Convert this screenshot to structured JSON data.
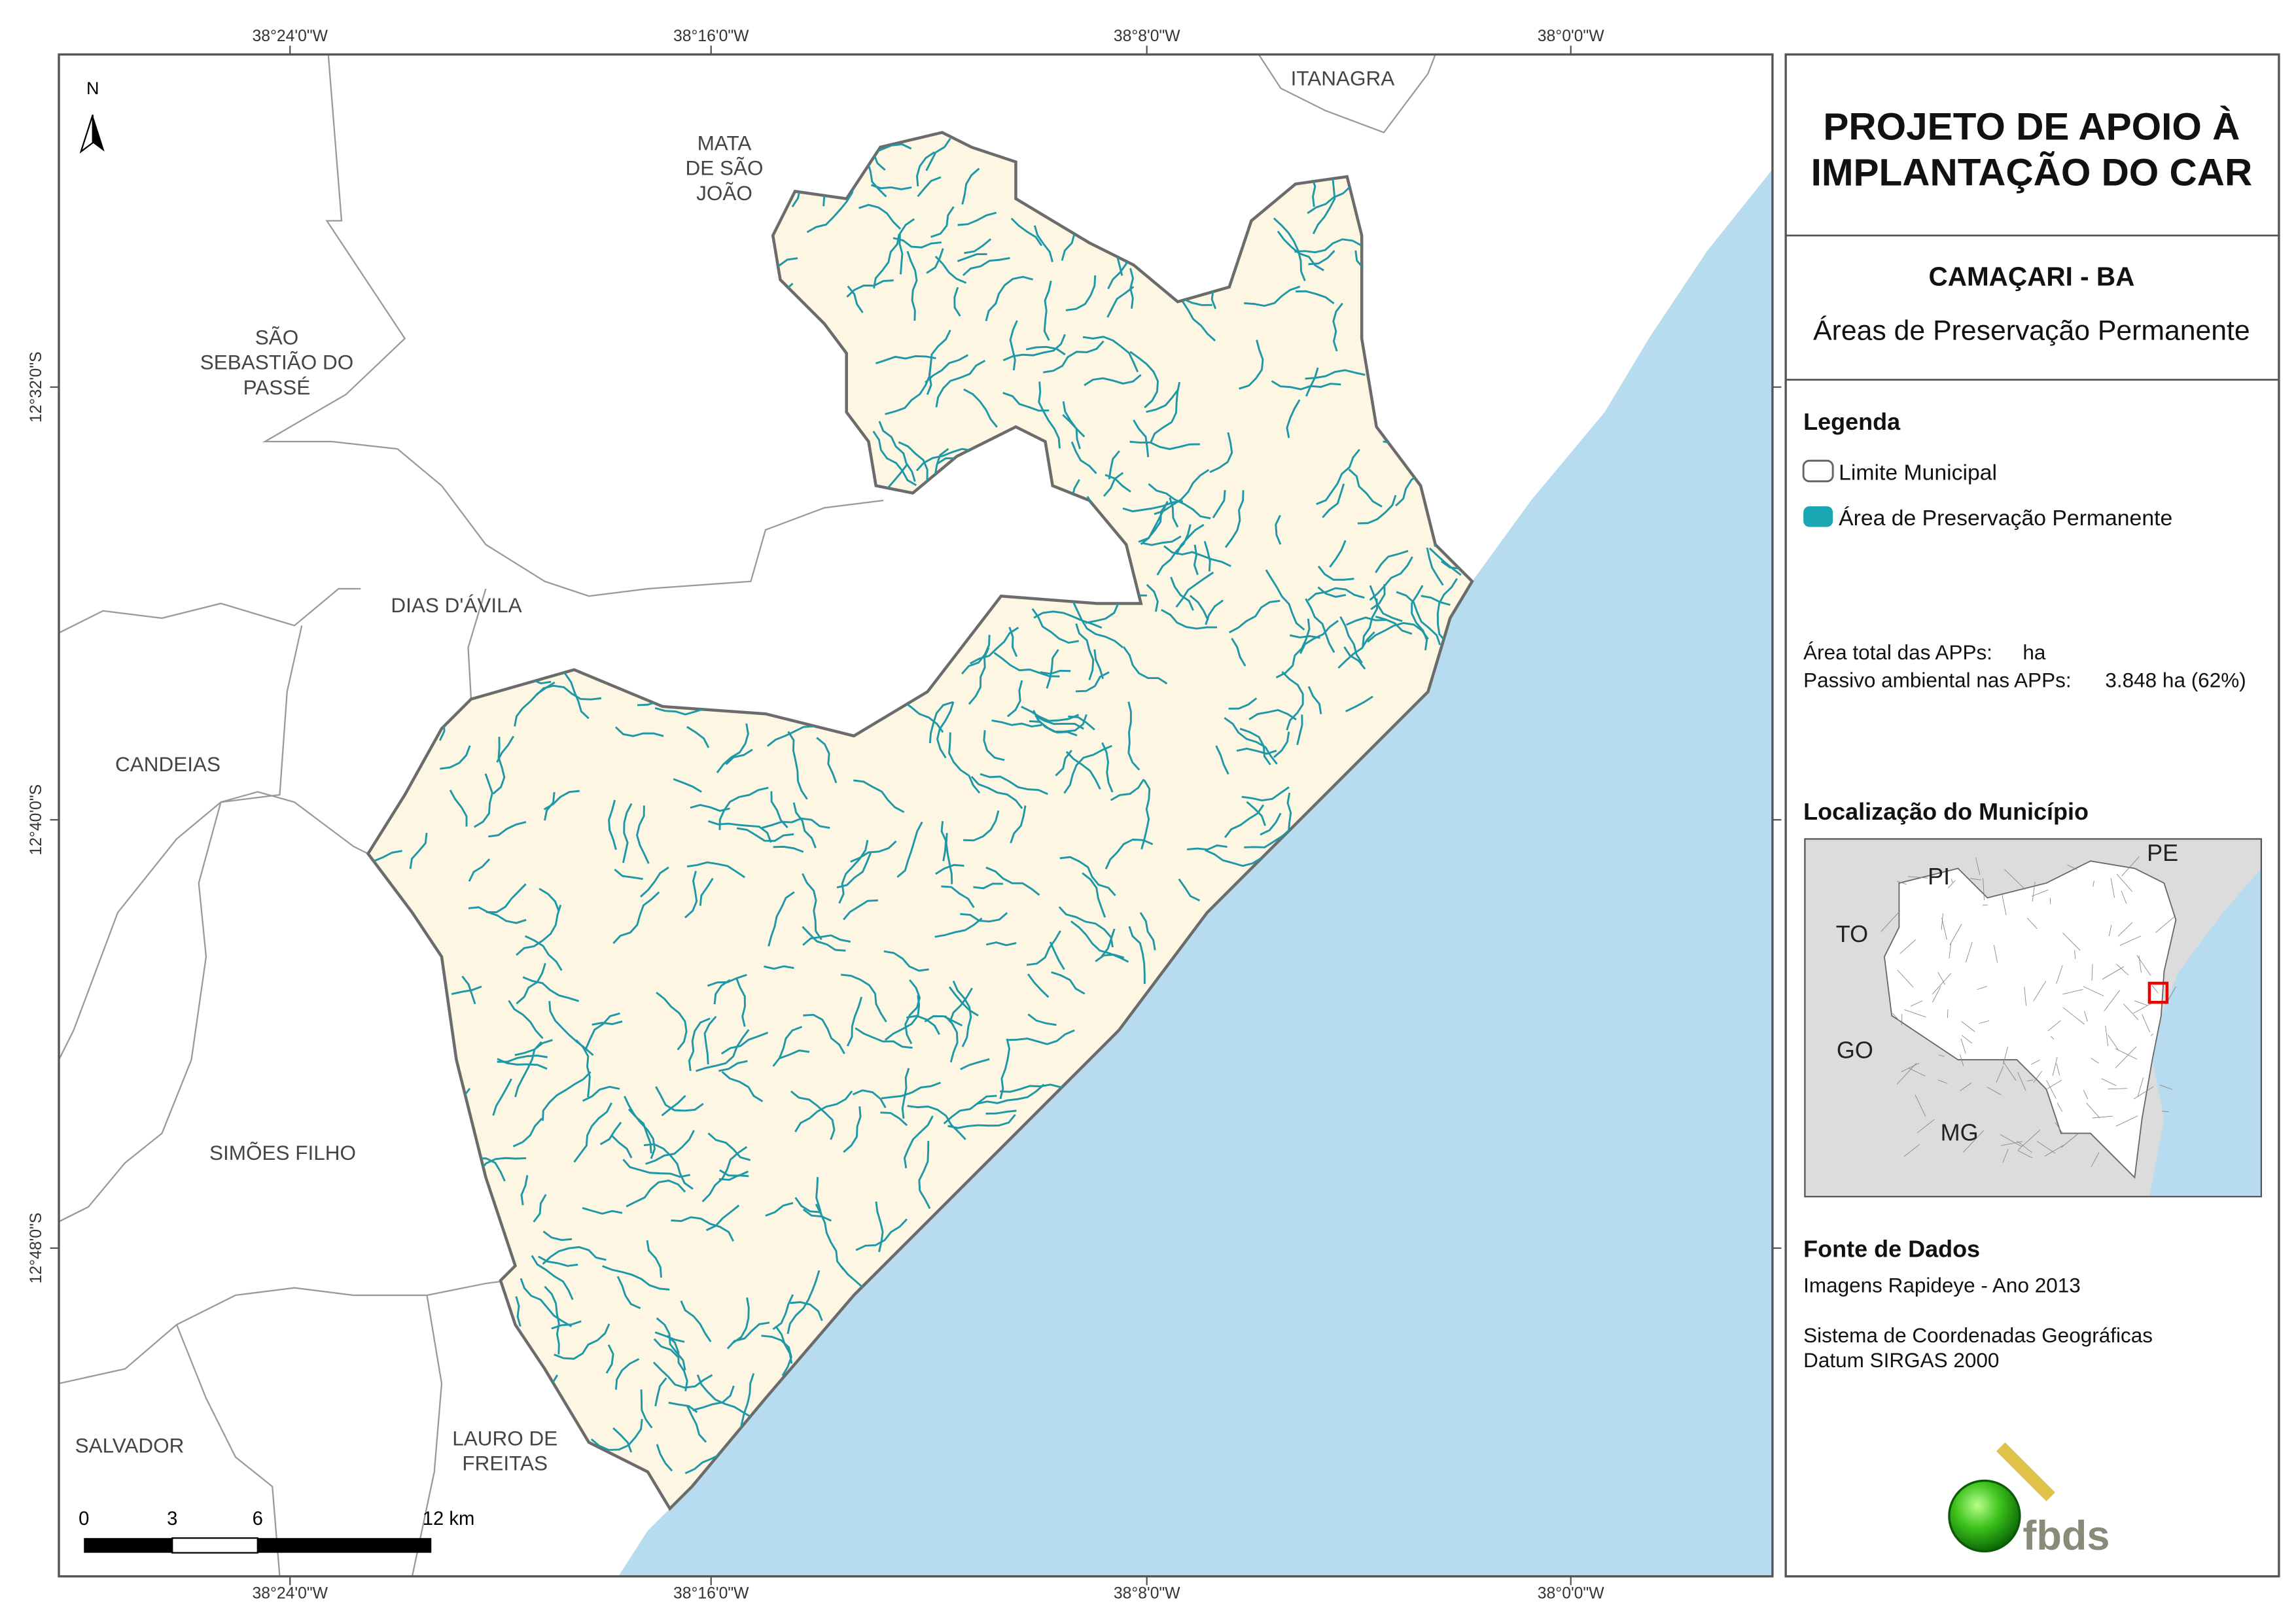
{
  "grid_labels": {
    "top": [
      "38°24'0\"W",
      "38°16'0\"W",
      "38°8'0\"W",
      "38°0'0\"W"
    ],
    "bottom": [
      "38°24'0\"W",
      "38°16'0\"W",
      "38°8'0\"W",
      "38°0'0\"W"
    ],
    "left": [
      "12°32'0\"S",
      "12°40'0\"S",
      "12°48'0\"S"
    ]
  },
  "north_arrow": "N",
  "places": [
    [
      "ITANAGRA"
    ],
    [
      "MATA",
      "DE SÃO",
      "JOÃO"
    ],
    [
      "SÃO",
      "SEBASTIÃO DO",
      "PASSÉ"
    ],
    [
      "DIAS D'ÁVILA"
    ],
    [
      "CANDEIAS"
    ],
    [
      "SIMÕES FILHO"
    ],
    [
      "SALVADOR"
    ],
    [
      "LAURO DE",
      "FREITAS"
    ]
  ],
  "scale_bar": [
    "0",
    "3",
    "6",
    "12 km"
  ],
  "panel": {
    "title": [
      "PROJETO DE APOIO À",
      "IMPLANTAÇÃO DO CAR"
    ],
    "municipality": "CAMAÇARI - BA",
    "theme": "Áreas de Preservação Permanente",
    "legend": {
      "title": "Legenda",
      "items": [
        "Limite Municipal",
        "Área de Preservação Permanente"
      ]
    },
    "stats": [
      {
        "label": "Área total das APPs:",
        "value": "ha"
      },
      {
        "label": "Passivo ambiental nas APPs:",
        "value": "3.848 ha (62%)"
      }
    ],
    "location": {
      "title": "Localização do Município",
      "states": [
        "PI",
        "PE",
        "TO",
        "GO",
        "MG"
      ]
    },
    "sources": {
      "title": "Fonte de Dados",
      "lines": [
        "Imagens Rapideye - Ano 2013",
        "Sistema de Coordenadas Geográficas",
        "Datum SIRGAS 2000"
      ]
    },
    "logo": "fbds"
  }
}
